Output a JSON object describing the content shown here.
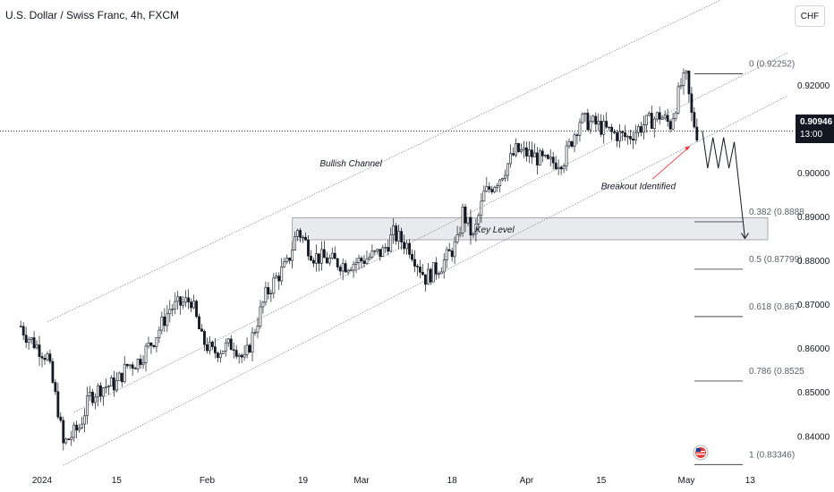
{
  "header": {
    "title": "U.S. Dollar / Swiss Franc, 4h, FXCM",
    "currency": "CHF"
  },
  "price_label": {
    "price": "0.90946",
    "countdown": "13:00"
  },
  "colors": {
    "candle": "#131722",
    "channel_line": "#9598a1",
    "fib_line": "#434651",
    "key_level_fill": "#e9eaed",
    "key_level_border": "#9598a1",
    "annotation_arrow": "#f23645",
    "projection": "#131722"
  },
  "chart_data": {
    "type": "candlestick",
    "symbol": "USDCHF",
    "timeframe": "4h",
    "x_tick_labels": [
      "2024",
      "15",
      "Feb",
      "19",
      "Mar",
      "18",
      "Apr",
      "15",
      "May",
      "13"
    ],
    "x_tick_dates": [
      "2024-01-01",
      "2024-01-15",
      "2024-02-01",
      "2024-02-19",
      "2024-03-01",
      "2024-03-18",
      "2024-04-01",
      "2024-04-15",
      "2024-05-01",
      "2024-05-13"
    ],
    "y_ticks": [
      "0.84000",
      "0.85000",
      "0.86000",
      "0.87000",
      "0.88000",
      "0.89000",
      "0.90000",
      "0.92000"
    ],
    "y_tick_values": [
      0.84,
      0.85,
      0.86,
      0.87,
      0.88,
      0.89,
      0.9,
      0.92
    ],
    "y_range": [
      0.8315,
      0.932
    ],
    "current_price": 0.90946,
    "closes": [
      [
        "2023-12-28",
        0.865
      ],
      [
        "2023-12-29",
        0.863
      ],
      [
        "2024-01-02",
        0.858
      ],
      [
        "2024-01-03",
        0.852
      ],
      [
        "2024-01-04",
        0.846
      ],
      [
        "2024-01-05",
        0.838
      ],
      [
        "2024-01-08",
        0.842
      ],
      [
        "2024-01-10",
        0.849
      ],
      [
        "2024-01-12",
        0.851
      ],
      [
        "2024-01-15",
        0.852
      ],
      [
        "2024-01-17",
        0.856
      ],
      [
        "2024-01-19",
        0.857
      ],
      [
        "2024-01-22",
        0.862
      ],
      [
        "2024-01-25",
        0.869
      ],
      [
        "2024-01-29",
        0.871
      ],
      [
        "2024-01-31",
        0.862
      ],
      [
        "2024-02-02",
        0.859
      ],
      [
        "2024-02-06",
        0.861
      ],
      [
        "2024-02-08",
        0.857
      ],
      [
        "2024-02-12",
        0.872
      ],
      [
        "2024-02-14",
        0.876
      ],
      [
        "2024-02-16",
        0.879
      ],
      [
        "2024-02-18",
        0.887
      ],
      [
        "2024-02-21",
        0.881
      ],
      [
        "2024-02-24",
        0.88
      ],
      [
        "2024-02-27",
        0.879
      ],
      [
        "2024-03-01",
        0.88
      ],
      [
        "2024-03-05",
        0.882
      ],
      [
        "2024-03-07",
        0.886
      ],
      [
        "2024-03-10",
        0.883
      ],
      [
        "2024-03-13",
        0.876
      ],
      [
        "2024-03-16",
        0.879
      ],
      [
        "2024-03-19",
        0.884
      ],
      [
        "2024-03-20",
        0.891
      ],
      [
        "2024-03-22",
        0.885
      ],
      [
        "2024-03-24",
        0.895
      ],
      [
        "2024-03-27",
        0.899
      ],
      [
        "2024-03-30",
        0.905
      ],
      [
        "2024-04-02",
        0.904
      ],
      [
        "2024-04-05",
        0.902
      ],
      [
        "2024-04-08",
        0.903
      ],
      [
        "2024-04-11",
        0.912
      ],
      [
        "2024-04-14",
        0.911
      ],
      [
        "2024-04-17",
        0.909
      ],
      [
        "2024-04-20",
        0.908
      ],
      [
        "2024-04-23",
        0.911
      ],
      [
        "2024-04-26",
        0.913
      ],
      [
        "2024-04-28",
        0.911
      ],
      [
        "2024-04-30",
        0.92
      ],
      [
        "2024-05-01",
        0.9215
      ],
      [
        "2024-05-02",
        0.913
      ],
      [
        "2024-05-03",
        0.909
      ]
    ],
    "channel": {
      "label": "Bullish Channel",
      "lines": [
        {
          "from": [
            "2024-01-02",
            0.866
          ],
          "to": [
            "2024-05-20",
            0.9466
          ]
        },
        {
          "from": [
            "2024-01-07",
            0.8454
          ],
          "to": [
            "2024-05-20",
            0.9273
          ]
        },
        {
          "from": [
            "2024-01-05",
            0.8333
          ],
          "to": [
            "2024-05-20",
            0.9175
          ]
        }
      ]
    },
    "key_level": {
      "label": "Key Level",
      "range": [
        0.8847,
        0.8897
      ],
      "from": "2024-02-17",
      "to": "2024-05-25"
    },
    "fibonacci": [
      {
        "ratio": "0",
        "label": "0 (0.92252)",
        "price": 0.92252
      },
      {
        "ratio": "0.382",
        "label": "0.382 (0.8888",
        "price": 0.8888
      },
      {
        "ratio": "0.5",
        "label": "0.5 (0.87799)",
        "price": 0.87799
      },
      {
        "ratio": "0.618",
        "label": "0.618 (0.867",
        "price": 0.8672
      },
      {
        "ratio": "0.786",
        "label": "0.786 (0.8525",
        "price": 0.8525
      },
      {
        "ratio": "1",
        "label": "1 (0.83346)",
        "price": 0.83346
      }
    ],
    "annotations": [
      {
        "text": "Bullish Channel",
        "at": [
          "2024-02-28",
          0.9014
        ]
      },
      {
        "text": "Breakout Identified",
        "at": [
          "2024-04-22",
          0.8962
        ]
      },
      {
        "text": "Key Level",
        "at": [
          "2024-03-26",
          0.8863
        ]
      }
    ],
    "projection_path": [
      [
        "2024-05-03",
        0.9095
      ],
      [
        "2024-05-04",
        0.901
      ],
      [
        "2024-05-05",
        0.908
      ],
      [
        "2024-05-06",
        0.901
      ],
      [
        "2024-05-07",
        0.908
      ],
      [
        "2024-05-08",
        0.901
      ],
      [
        "2024-05-09",
        0.907
      ],
      [
        "2024-05-11",
        0.885
      ]
    ]
  }
}
